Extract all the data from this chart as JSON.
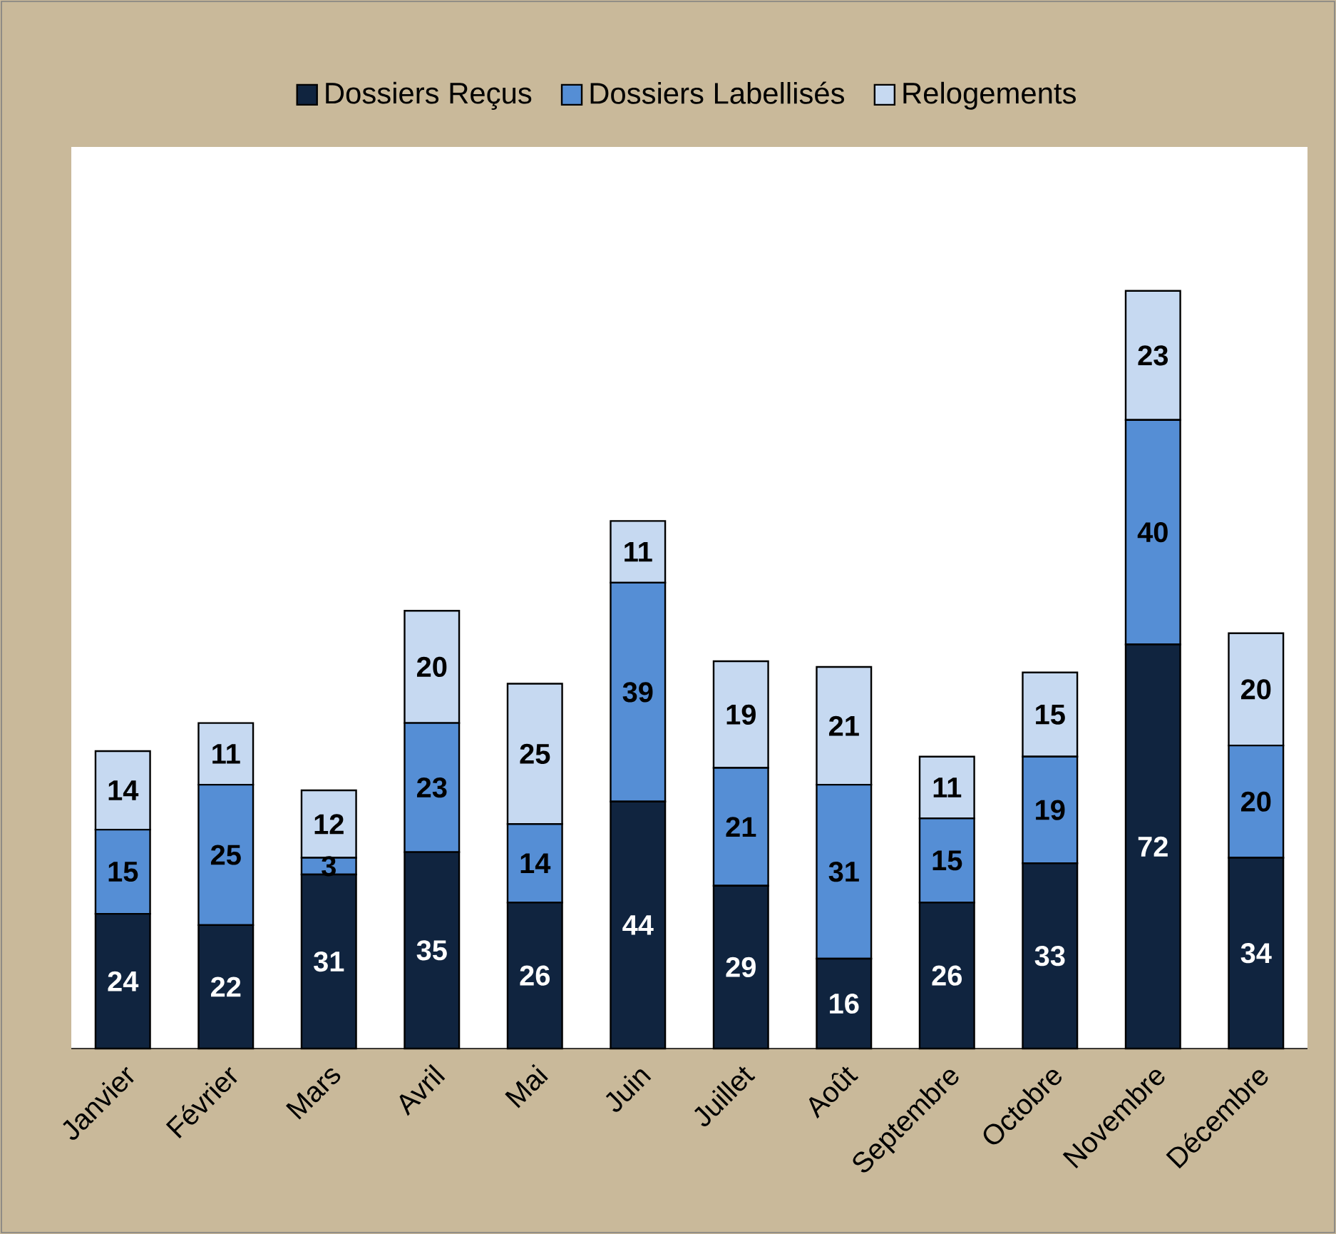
{
  "chart_data": {
    "type": "bar",
    "stacked": true,
    "data_labels": true,
    "legend": "top",
    "categories": [
      "Janvier",
      "Février",
      "Mars",
      "Avril",
      "Mai",
      "Juin",
      "Juillet",
      "Août",
      "Septembre",
      "Octobre",
      "Novembre",
      "Décembre"
    ],
    "series": [
      {
        "name": "Dossiers Reçus",
        "color": "#10243f",
        "values": [
          24,
          22,
          31,
          35,
          26,
          44,
          29,
          16,
          26,
          33,
          72,
          34
        ]
      },
      {
        "name": "Dossiers Labellisés",
        "color": "#558ed5",
        "values": [
          15,
          25,
          3,
          23,
          14,
          39,
          21,
          31,
          15,
          19,
          40,
          20
        ]
      },
      {
        "name": "Relogements",
        "color": "#c6d9f1",
        "values": [
          14,
          11,
          12,
          20,
          25,
          11,
          19,
          21,
          11,
          15,
          23,
          20
        ]
      }
    ]
  }
}
